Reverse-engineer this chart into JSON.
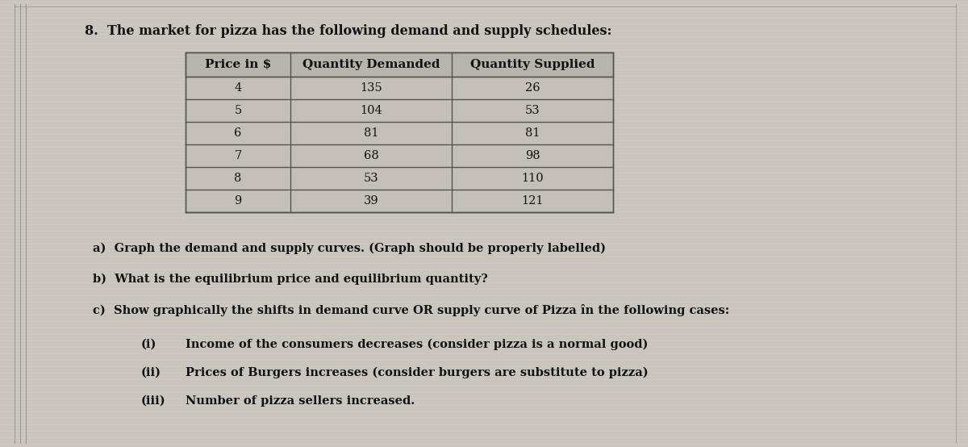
{
  "title": "8.  The market for pizza has the following demand and supply schedules:",
  "table_headers": [
    "Price in $",
    "Quantity Demanded",
    "Quantity Supplied"
  ],
  "table_data": [
    [
      4,
      135,
      26
    ],
    [
      5,
      104,
      53
    ],
    [
      6,
      81,
      81
    ],
    [
      7,
      68,
      98
    ],
    [
      8,
      53,
      110
    ],
    [
      9,
      39,
      121
    ]
  ],
  "questions": [
    "a)  Graph the demand and supply curves. (Graph should be properly labelled)",
    "b)  What is the equilibrium price and equilibrium quantity?",
    "c)  Show graphically the shifts in demand curve OR supply curve of Pizza în the following cases:"
  ],
  "sub_questions": [
    [
      "(i)",
      "Income of the consumers decreases (consider pizza is a normal good)"
    ],
    [
      "(ii)",
      "Prices of Burgers increases (consider burgers are substitute to pizza)"
    ],
    [
      "(iii)",
      "Number of pizza sellers increased."
    ]
  ],
  "bg_color": "#cbc7c0",
  "table_bg_header": "#b8b3ac",
  "table_bg_row": "#c4bfb8",
  "text_color": "#111111",
  "border_color": "#555550",
  "stripe_color": "#bfbbb4",
  "title_fontsize": 11.5,
  "body_fontsize": 10.5,
  "header_fontsize": 11.0
}
